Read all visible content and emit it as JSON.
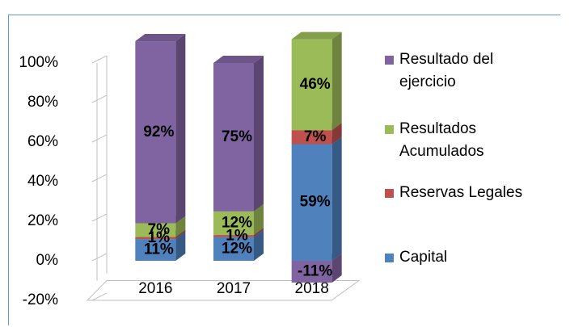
{
  "chart_data": {
    "type": "bar3d_stacked",
    "categories": [
      "2016",
      "2017",
      "2018"
    ],
    "series": [
      {
        "name": "Capital",
        "color": "#4f81bd",
        "values": [
          11,
          12,
          59
        ],
        "value_labels": [
          "11%",
          "12%",
          "59%"
        ]
      },
      {
        "name": "Reservas Legales",
        "color": "#c0504d",
        "values": [
          1,
          1,
          7
        ],
        "value_labels": [
          "1%",
          "1%",
          "7%"
        ]
      },
      {
        "name": "Resultados Acumulados",
        "color": "#9bbb59",
        "values": [
          7,
          12,
          46
        ],
        "value_labels": [
          "7%",
          "12%",
          "46%"
        ]
      },
      {
        "name": "Resultado del ejercicio",
        "color": "#8064a2",
        "values": [
          92,
          75,
          -11
        ],
        "value_labels": [
          "92%",
          "75%",
          "-11%"
        ]
      }
    ],
    "ylim": [
      -20,
      100
    ],
    "yticks": [
      {
        "value": -20,
        "label": "-20%"
      },
      {
        "value": 0,
        "label": "0%"
      },
      {
        "value": 20,
        "label": "20%"
      },
      {
        "value": 40,
        "label": "40%"
      },
      {
        "value": 60,
        "label": "60%"
      },
      {
        "value": 80,
        "label": "80%"
      },
      {
        "value": 100,
        "label": "100%"
      }
    ],
    "grid": false,
    "legend": "right"
  }
}
